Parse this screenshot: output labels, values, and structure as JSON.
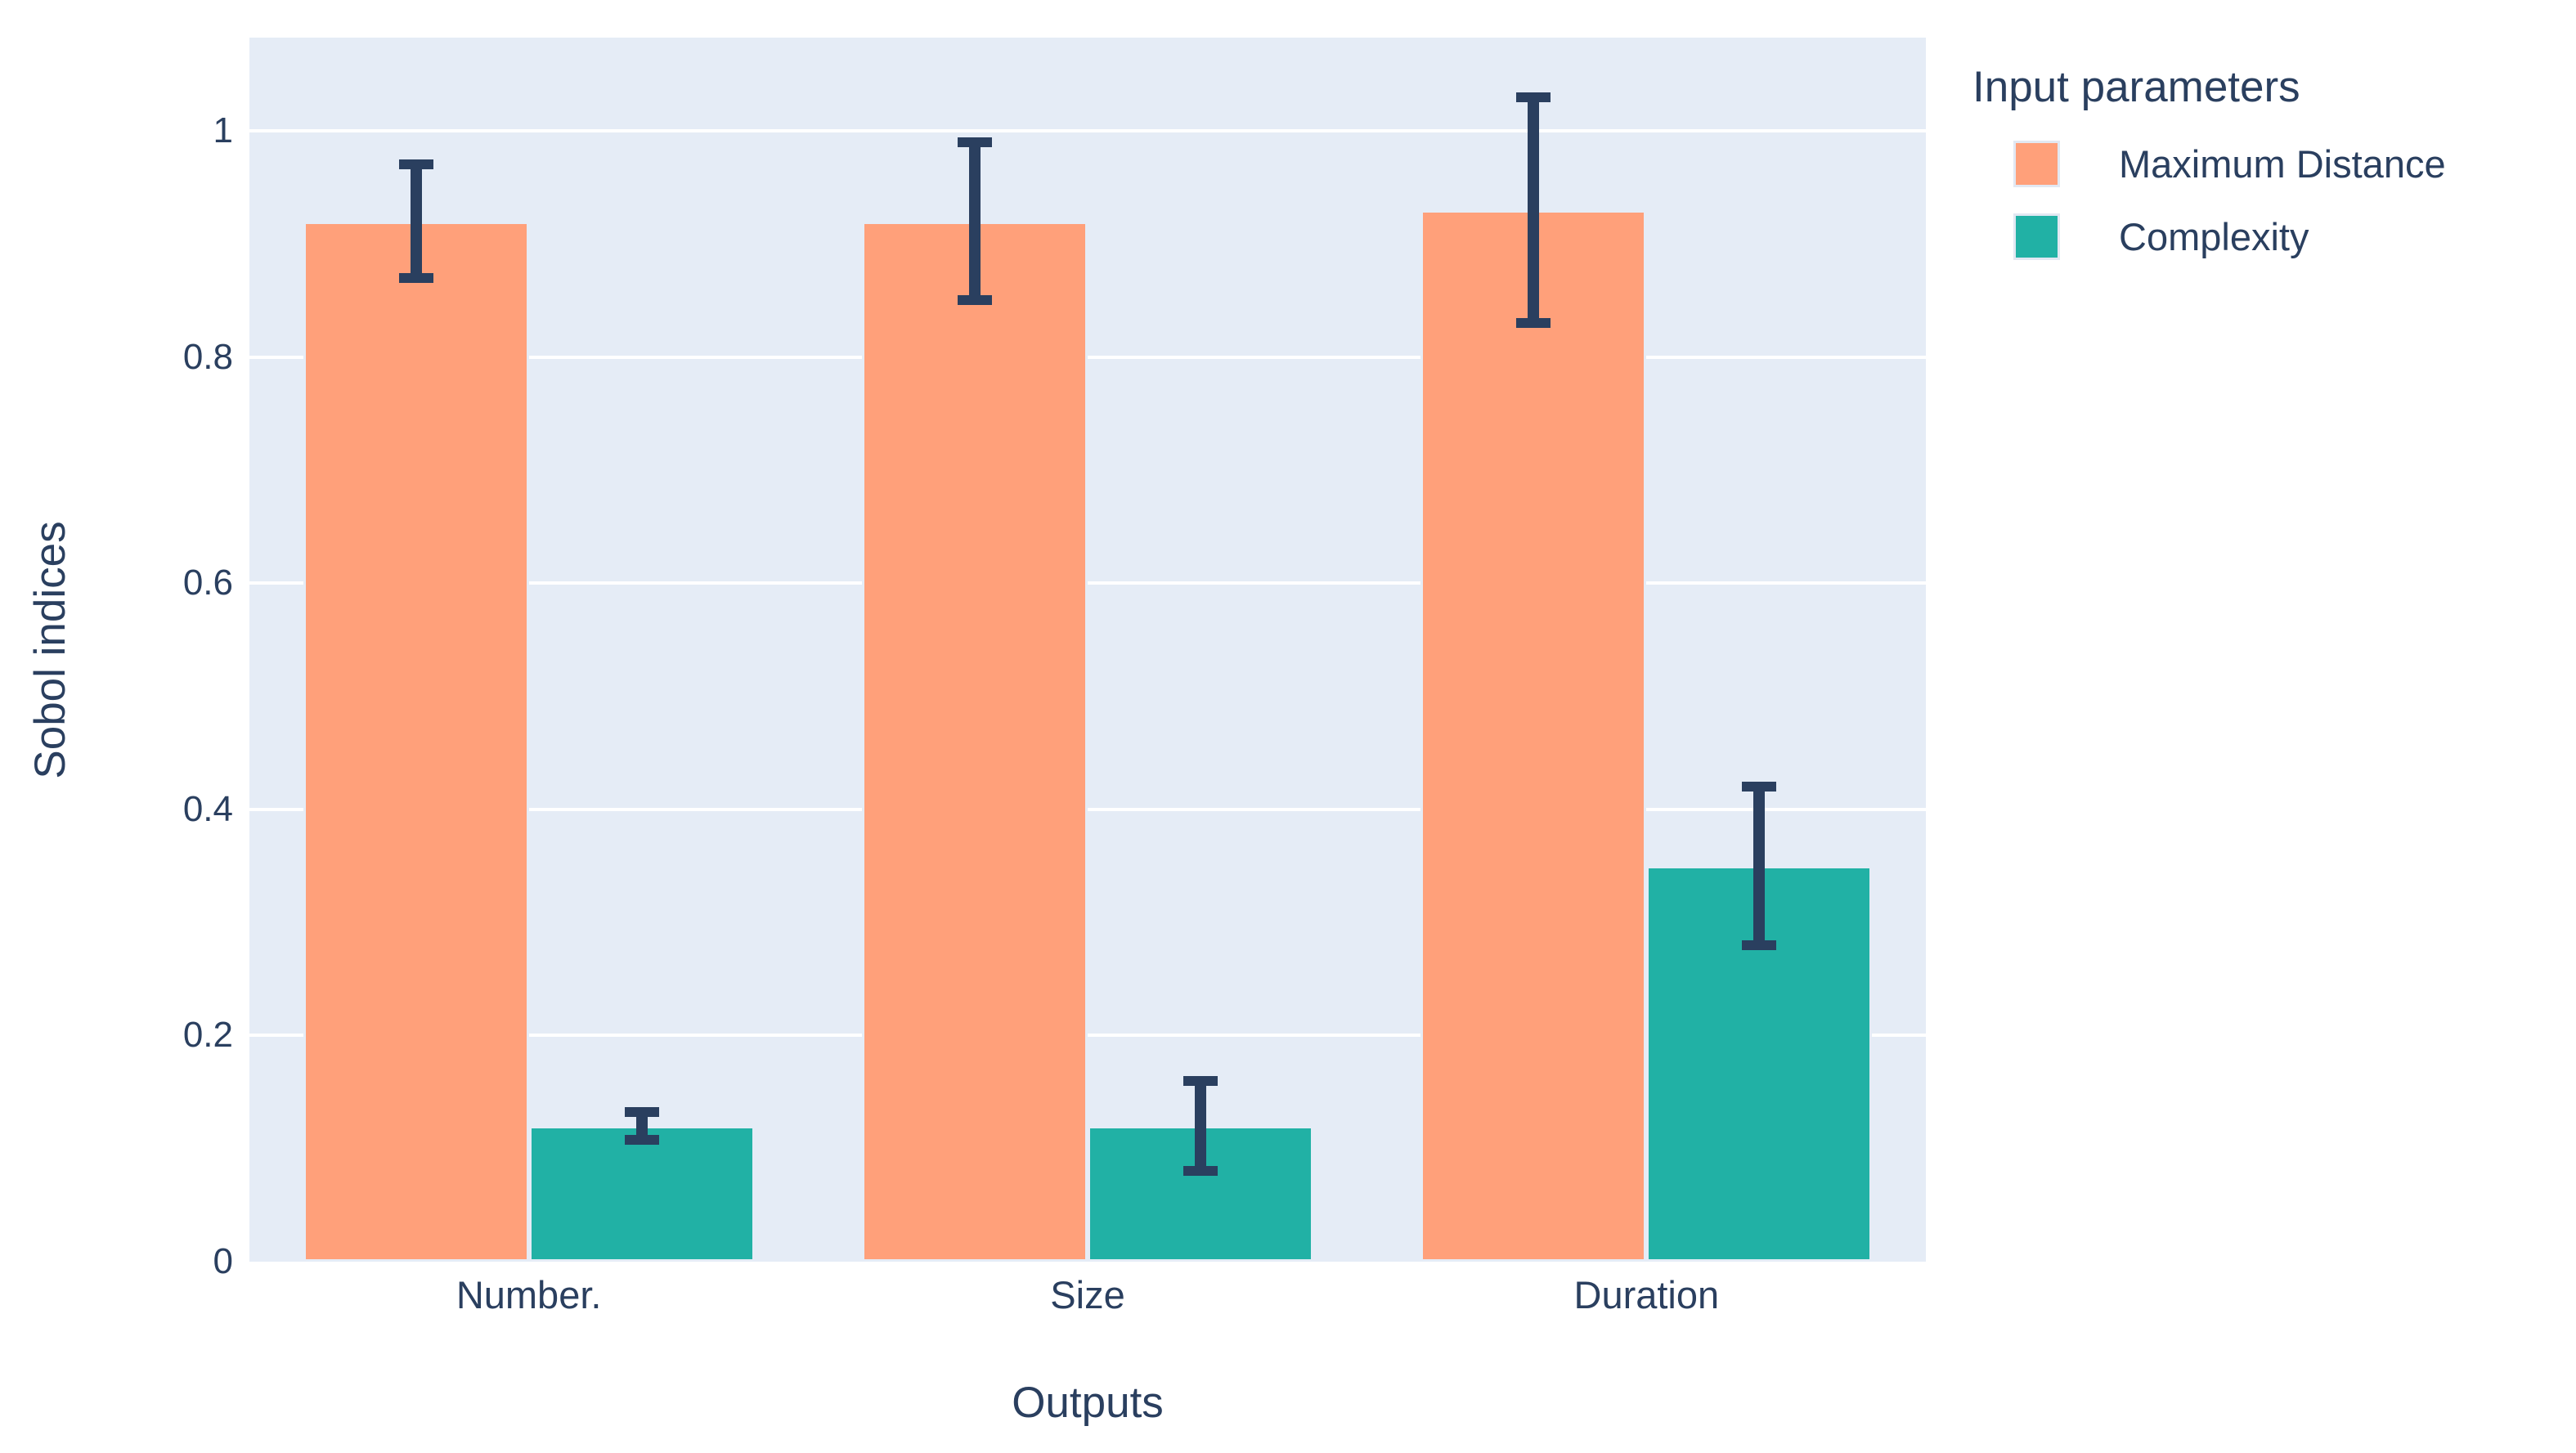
{
  "chart_data": {
    "type": "bar",
    "categories": [
      "Number.",
      "Size",
      "Duration"
    ],
    "series": [
      {
        "name": "Maximum Distance",
        "color": "#ffa07a",
        "values": [
          0.92,
          0.92,
          0.93
        ],
        "error": [
          0.05,
          0.07,
          0.1
        ]
      },
      {
        "name": "Complexity",
        "color": "#21b1a5",
        "values": [
          0.12,
          0.12,
          0.35
        ],
        "error": [
          0.012,
          0.04,
          0.07
        ]
      }
    ],
    "xlabel": "Outputs",
    "ylabel": "Sobol indices",
    "legend_title": "Input parameters",
    "ylim": [
      0,
      1.08
    ],
    "yticks": [
      0,
      0.2,
      0.4,
      0.6,
      0.8,
      1
    ],
    "ytick_labels": [
      "0",
      "0.2",
      "0.4",
      "0.6",
      "0.8",
      "1"
    ],
    "grid": true,
    "legend_position": "right",
    "plot_bg": "#e5ecf6",
    "grid_color": "#ffffff",
    "text_color": "#2a3f5f",
    "error_bar_color": "#2a3f5f"
  }
}
